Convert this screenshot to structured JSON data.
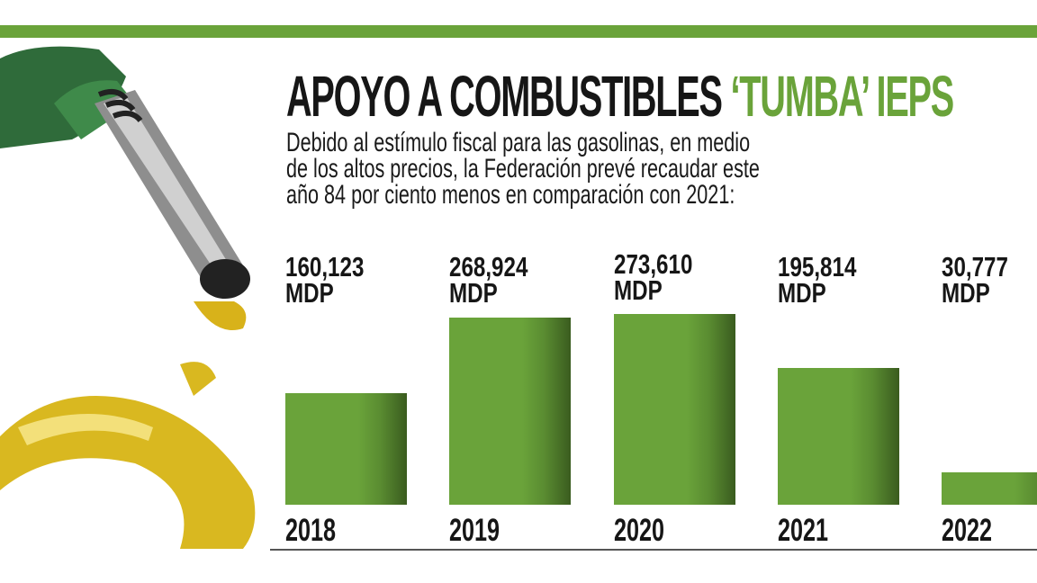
{
  "title": {
    "main": "APOYO A COMBUSTIBLES",
    "highlight": "‘TUMBA’ IEPS"
  },
  "subtitle_lines": [
    "Debido al estímulo fiscal para las gasolinas, en medio",
    "de los altos precios, la Federación prevé recaudar este",
    "año 84 por ciento menos en comparación con 2021:"
  ],
  "colors": {
    "accent": "#6aa33a",
    "text": "#161616"
  },
  "chart_data": {
    "type": "bar",
    "categories": [
      "2018",
      "2019",
      "2020",
      "2021",
      "2022"
    ],
    "values": [
      160123,
      268924,
      273610,
      195814,
      30777
    ],
    "value_labels": [
      "160,123",
      "268,924",
      "273,610",
      "195,814",
      "30,777"
    ],
    "unit": "MDP",
    "title": "APOYO A COMBUSTIBLES ‘TUMBA’ IEPS",
    "xlabel": "",
    "ylabel": "",
    "grid": false,
    "bar_color": "#6aa33a"
  }
}
